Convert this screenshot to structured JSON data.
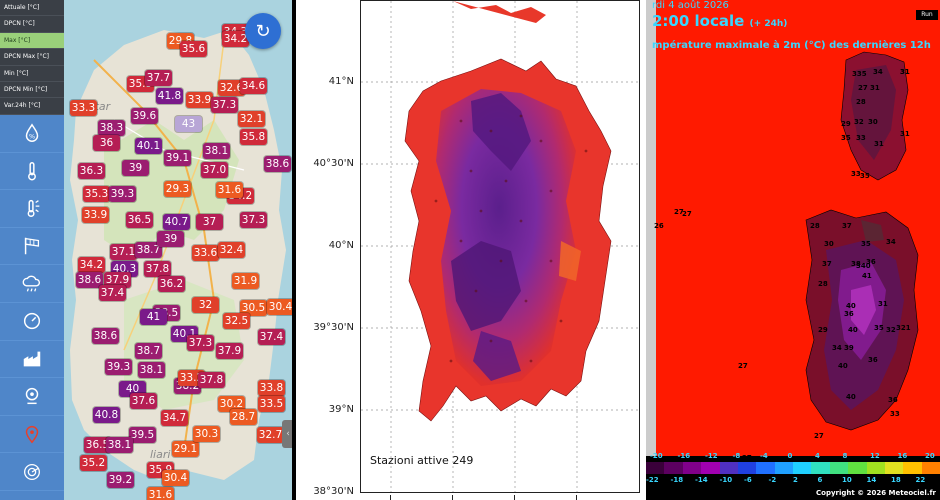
{
  "left_panel": {
    "menu": [
      {
        "label": "Attuale [°C]",
        "active": false
      },
      {
        "label": "DPCN [°C]",
        "active": false
      },
      {
        "label": "Max [°C]",
        "active": true
      },
      {
        "label": "DPCN Max [°C]",
        "active": false
      },
      {
        "label": "Min [°C]",
        "active": false
      },
      {
        "label": "DPCN Min [°C]",
        "active": false
      },
      {
        "label": "Var.24h [°C]",
        "active": false
      }
    ],
    "toolbar_icons": [
      "humidity-icon",
      "thermometer-icon",
      "sun-thermometer-icon",
      "wind-flag-icon",
      "rain-cloud-icon",
      "pressure-gauge-icon",
      "industry-icon",
      "webcam-icon",
      "location-pin-icon",
      "radar-icon"
    ],
    "refresh_icon": "↻",
    "handle_icon": "‹",
    "places": [
      "Tàttar",
      "liari"
    ],
    "temps": [
      "29.8",
      "35.6",
      "34.3",
      "34.2",
      "35.9",
      "37.7",
      "41.8",
      "33.9",
      "32.6",
      "34.6",
      "37.3",
      "33.3",
      "39.6",
      "38.3",
      "43",
      "32.1",
      "36",
      "40.1",
      "38.1",
      "35.8",
      "39",
      "39.1",
      "36.3",
      "37.0",
      "35.3",
      "39.3",
      "34.2",
      "29.3",
      "31.6",
      "33.9",
      "36.5",
      "40.7",
      "37",
      "38.6",
      "37.3",
      "37.1",
      "38.7",
      "39",
      "33.6",
      "32.4",
      "40.3",
      "37.8",
      "31.9",
      "34.2",
      "38.6",
      "37.9",
      "37.4",
      "36.2",
      "30.5",
      "38.5",
      "32",
      "41",
      "40.1",
      "32.5",
      "30.4",
      "38.6",
      "37.3",
      "37.4",
      "38.7",
      "37.9",
      "39.3",
      "38.1",
      "38.2",
      "33.2",
      "37.8",
      "33.8",
      "40",
      "37.6",
      "30.2",
      "33.5",
      "34.7",
      "40.8",
      "32.7",
      "39.5",
      "36.5",
      "38.1",
      "35.2",
      "39.2",
      "35.9",
      "30.4",
      "31.6",
      "29.1",
      "30.3",
      "28.7"
    ]
  },
  "middle_panel": {
    "lat_labels": [
      "41°N",
      "40°30'N",
      "40°N",
      "39°30'N",
      "39°N",
      "38°30'N"
    ],
    "caption": "Stazioni attive 249"
  },
  "right_panel": {
    "header_line1": "rdi 4 août 2026",
    "header_line2": "2:00 locale",
    "header_offset": "(+ 24h)",
    "header_line3": "mpérature maximale à 2m (°C) des dernières 12h",
    "run_badge": "Run",
    "copyright": "Copyright © 2026 Meteociel.fr",
    "legend_top": [
      "-20",
      "-16",
      "-12",
      "-8",
      "-4",
      "0",
      "4",
      "8",
      "12",
      "16",
      "20"
    ],
    "legend_bottom": [
      "-22",
      "-18",
      "-14",
      "-10",
      "-6",
      "-2",
      "2",
      "6",
      "10",
      "14",
      "18",
      "22"
    ],
    "station_values": [
      "31",
      "335",
      "34",
      "31",
      "27",
      "31",
      "28",
      "29",
      "32",
      "30",
      "31",
      "35",
      "33",
      "31",
      "33",
      "35",
      "27",
      "28",
      "37",
      "30",
      "35",
      "34",
      "37",
      "36",
      "38",
      "340",
      "41",
      "28",
      "40",
      "31",
      "29",
      "36",
      "40",
      "35",
      "32",
      "321",
      "34",
      "39",
      "36",
      "40",
      "40",
      "36",
      "33",
      "27",
      "27",
      "26",
      "27",
      "27"
    ]
  },
  "colors": {
    "sidebar_blue": "#4f86c9",
    "menu_dark": "#3a3f46",
    "menu_active": "#9ad07a",
    "refresh_button": "#2e6fd3",
    "hot_red": "#ff1a00",
    "header_cyan": "#39d7ff"
  }
}
